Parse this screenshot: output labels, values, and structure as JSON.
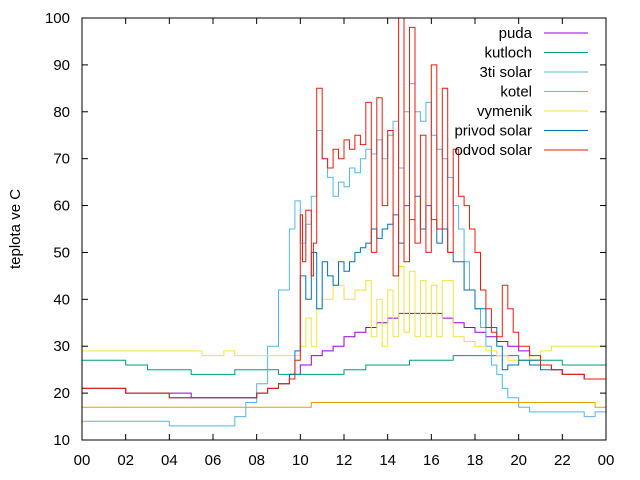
{
  "chart_data": {
    "type": "line",
    "xlabel": "",
    "ylabel": "teplota ve C",
    "xlim": [
      0,
      24
    ],
    "ylim": [
      10,
      100
    ],
    "x_ticks": [
      "00",
      "02",
      "04",
      "06",
      "08",
      "10",
      "12",
      "14",
      "16",
      "18",
      "20",
      "22",
      "00"
    ],
    "y_ticks": [
      "10",
      "20",
      "30",
      "40",
      "50",
      "60",
      "70",
      "80",
      "90",
      "100"
    ],
    "grid": false,
    "legend_position": "top-right",
    "series": [
      {
        "name": "puda",
        "color": "#9400d3",
        "x": [
          0,
          1,
          2,
          3,
          4,
          5,
          6,
          7,
          8,
          8.5,
          9,
          9.5,
          10,
          10.5,
          11,
          11.5,
          12,
          12.5,
          13,
          13.5,
          14,
          14.5,
          15,
          15.5,
          16,
          16.5,
          17,
          17.5,
          18,
          18.5,
          19,
          19.5,
          20,
          20.5,
          21,
          21.5,
          22,
          22.5,
          23,
          23.5,
          24
        ],
        "y": [
          21,
          21,
          20,
          20,
          20,
          19,
          19,
          19,
          20,
          21,
          22,
          24,
          26,
          28,
          29,
          30,
          32,
          33,
          34,
          35,
          36,
          37,
          37,
          37,
          37,
          36,
          35,
          34,
          33,
          32,
          31,
          30,
          29,
          27,
          26,
          25,
          24,
          24,
          23,
          23,
          22
        ]
      },
      {
        "name": "kutloch",
        "color": "#009e73",
        "x": [
          0,
          1,
          2,
          3,
          4,
          5,
          6,
          7,
          8,
          9,
          10,
          11,
          12,
          13,
          14,
          15,
          16,
          17,
          18,
          19,
          20,
          21,
          22,
          23,
          24
        ],
        "y": [
          27,
          27,
          26,
          25,
          25,
          24,
          24,
          25,
          25,
          24,
          24,
          24,
          25,
          26,
          26,
          27,
          27,
          28,
          28,
          28,
          27,
          27,
          26,
          26,
          26
        ]
      },
      {
        "name": "3ti solar",
        "color": "#56b4e9",
        "x": [
          0,
          1,
          2,
          3,
          4,
          5,
          6,
          7,
          7.5,
          8,
          8.5,
          9,
          9.5,
          9.75,
          10,
          10.25,
          10.5,
          10.75,
          11,
          11.25,
          11.5,
          11.75,
          12,
          12.25,
          12.5,
          12.75,
          13,
          13.25,
          13.5,
          13.75,
          14,
          14.25,
          14.5,
          14.75,
          15,
          15.25,
          15.5,
          15.75,
          16,
          16.25,
          16.5,
          16.75,
          17,
          17.25,
          17.5,
          17.75,
          18,
          18.25,
          18.5,
          18.75,
          19,
          19.25,
          19.5,
          20,
          20.5,
          21,
          21.5,
          22,
          22.5,
          23,
          23.5,
          24
        ],
        "y": [
          14,
          14,
          14,
          14,
          13,
          13,
          13,
          15,
          18,
          22,
          30,
          42,
          55,
          61,
          52,
          56,
          62,
          76,
          70,
          66,
          62,
          65,
          64,
          68,
          67,
          70,
          72,
          71,
          74,
          70,
          75,
          78,
          68,
          80,
          86,
          80,
          78,
          82,
          75,
          72,
          70,
          66,
          60,
          55,
          48,
          42,
          38,
          34,
          30,
          26,
          24,
          21,
          19,
          17,
          16,
          16,
          16,
          16,
          16,
          15,
          16,
          17
        ]
      },
      {
        "name": "kotel",
        "color": "#e69f00",
        "x": [
          0,
          1,
          2,
          3,
          4,
          5,
          6,
          7,
          8,
          9,
          10,
          10.5,
          11,
          12,
          13,
          14,
          15,
          16,
          17,
          18,
          19,
          20,
          21,
          22,
          23,
          23.5,
          24
        ],
        "y": [
          17,
          17,
          17,
          17,
          17,
          17,
          17,
          17,
          17,
          17,
          17,
          18,
          18,
          18,
          18,
          18,
          18,
          18,
          18,
          18,
          18,
          18,
          18,
          18,
          18,
          17,
          18
        ]
      },
      {
        "name": "vymenik",
        "color": "#f0e442",
        "x": [
          0,
          1,
          2,
          3,
          4,
          5,
          5.5,
          6,
          6.5,
          7,
          7.5,
          8,
          8.5,
          9,
          9.5,
          10,
          10.25,
          10.5,
          10.75,
          11,
          11.5,
          12,
          12.5,
          13,
          13.25,
          13.5,
          13.75,
          14,
          14.25,
          14.5,
          14.75,
          15,
          15.25,
          15.5,
          15.75,
          16,
          16.25,
          16.5,
          17,
          17.5,
          18,
          18.5,
          19,
          19.5,
          20,
          20.5,
          21,
          21.5,
          22,
          22.5,
          23,
          23.5,
          24
        ],
        "y": [
          29,
          29,
          29,
          29,
          29,
          29,
          28,
          28,
          29,
          28,
          28,
          28,
          28,
          28,
          28,
          30,
          36,
          30,
          38,
          40,
          43,
          40,
          42,
          44,
          32,
          40,
          30,
          42,
          32,
          47,
          33,
          46,
          32,
          44,
          32,
          43,
          32,
          44,
          32,
          31,
          30,
          29,
          28,
          27,
          27,
          28,
          29,
          30,
          30,
          30,
          30,
          30,
          30
        ]
      },
      {
        "name": "privod solar",
        "color": "#0072b2",
        "x": [
          0,
          1,
          2,
          3,
          4,
          5,
          6,
          7,
          8,
          8.5,
          9,
          9.5,
          9.75,
          10,
          10.25,
          10.5,
          10.75,
          11,
          11.25,
          11.5,
          11.75,
          12,
          12.25,
          12.5,
          12.75,
          13,
          13.25,
          13.5,
          13.75,
          14,
          14.25,
          14.5,
          14.75,
          15,
          15.25,
          15.5,
          15.75,
          16,
          16.25,
          16.5,
          16.75,
          17,
          17.5,
          18,
          18.5,
          19,
          19.25,
          19.5,
          20,
          20.5,
          21,
          21.5,
          22,
          22.5,
          23,
          23.5,
          24
        ],
        "y": [
          21,
          21,
          20,
          20,
          19,
          19,
          19,
          19,
          20,
          21,
          22,
          24,
          29,
          45,
          40,
          50,
          38,
          48,
          45,
          43,
          48,
          46,
          48,
          50,
          51,
          52,
          55,
          53,
          55,
          56,
          58,
          52,
          60,
          57,
          62,
          55,
          60,
          57,
          52,
          55,
          50,
          48,
          42,
          38,
          34,
          30,
          25,
          26,
          27,
          26,
          25,
          25,
          24,
          24,
          23,
          23,
          23
        ]
      },
      {
        "name": "odvod solar",
        "color": "#e51e10",
        "x": [
          0,
          1,
          2,
          3,
          4,
          5,
          6,
          7,
          8,
          8.5,
          9,
          9.5,
          9.75,
          10,
          10.1,
          10.25,
          10.5,
          10.6,
          10.75,
          11,
          11.25,
          11.5,
          11.75,
          12,
          12.25,
          12.5,
          12.75,
          13,
          13.25,
          13.5,
          13.75,
          14,
          14.25,
          14.5,
          14.75,
          15,
          15.25,
          15.5,
          15.75,
          16,
          16.25,
          16.5,
          16.75,
          17,
          17.25,
          17.5,
          17.75,
          18,
          18.25,
          18.5,
          18.75,
          19,
          19.25,
          19.5,
          19.75,
          20,
          20.5,
          21,
          21.5,
          22,
          22.5,
          23,
          23.5,
          24
        ],
        "y": [
          21,
          21,
          20,
          20,
          19,
          19,
          19,
          19,
          20,
          21,
          22,
          23,
          27,
          58,
          48,
          59,
          45,
          52,
          85,
          70,
          68,
          72,
          70,
          74,
          72,
          75,
          73,
          82,
          50,
          83,
          60,
          76,
          45,
          100,
          48,
          98,
          52,
          75,
          50,
          90,
          55,
          85,
          50,
          72,
          62,
          60,
          55,
          50,
          42,
          38,
          33,
          32,
          43,
          38,
          33,
          30,
          28,
          26,
          25,
          24,
          24,
          23,
          23,
          23
        ]
      }
    ]
  }
}
